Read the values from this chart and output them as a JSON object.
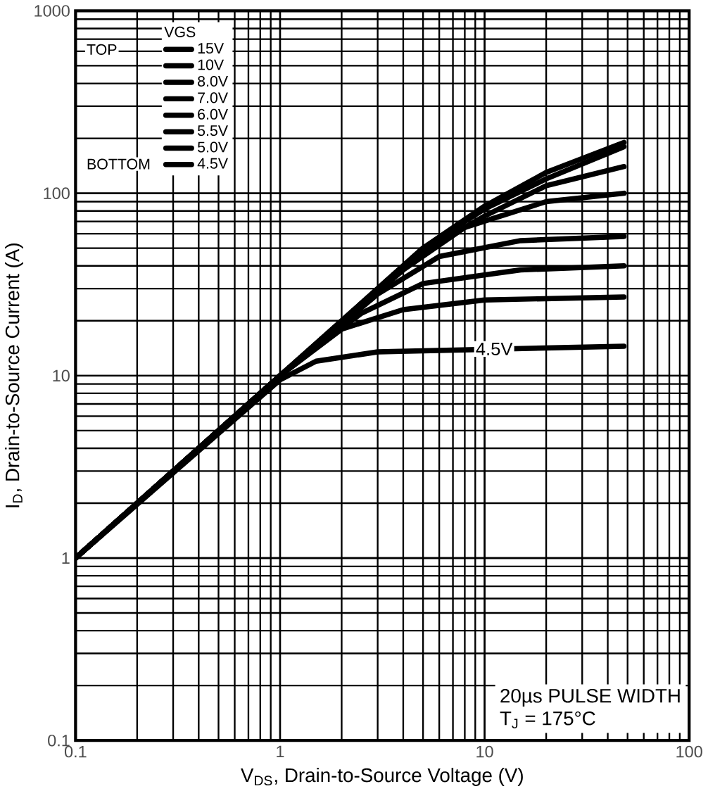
{
  "chart_data": {
    "type": "line",
    "xlabel": "V$_{DS}$, Drain-to-Source Voltage (V)",
    "ylabel": "I$_{D}$, Drain-to-Source Current (A)",
    "legend_title": "VGS",
    "annotations": [
      "TOP",
      "BOTTOM",
      {
        "text": "4.5V",
        "x": 14,
        "y": 14
      },
      "20µs PULSE WIDTH",
      "T$_{J}$ = 175°C"
    ],
    "log": "xy",
    "grid": true,
    "legend": "top left",
    "marker": "none",
    "line_style": "solid",
    "xlim": [
      0.1,
      100
    ],
    "ylim": [
      0.1,
      1000
    ],
    "xticks": [
      0.1,
      1,
      10,
      100
    ],
    "yticks": [
      0.1,
      1,
      10,
      100,
      1000
    ],
    "series": [
      {
        "name": "15V",
        "color": "#000000",
        "x": [
          0.1,
          1,
          5,
          10,
          20,
          48
        ],
        "values": [
          1,
          10,
          50,
          85,
          130,
          190
        ]
      },
      {
        "name": "10V",
        "color": "#000000",
        "x": [
          0.1,
          1,
          5,
          10,
          20,
          48
        ],
        "values": [
          1,
          10,
          50,
          82,
          120,
          180
        ]
      },
      {
        "name": "8.0V",
        "color": "#000000",
        "x": [
          0.1,
          1,
          5,
          10,
          20,
          48
        ],
        "values": [
          1,
          10,
          48,
          75,
          110,
          140
        ]
      },
      {
        "name": "7.0V",
        "color": "#000000",
        "x": [
          0.1,
          1,
          4,
          8,
          20,
          48
        ],
        "values": [
          1,
          10,
          38,
          65,
          90,
          100
        ]
      },
      {
        "name": "6.0V",
        "color": "#000000",
        "x": [
          0.1,
          1,
          3,
          6,
          15,
          48
        ],
        "values": [
          1,
          10,
          28,
          45,
          55,
          58
        ]
      },
      {
        "name": "5.5V",
        "color": "#000000",
        "x": [
          0.1,
          1,
          2.5,
          5,
          15,
          48
        ],
        "values": [
          1,
          10,
          22,
          32,
          38,
          40
        ]
      },
      {
        "name": "5.0V",
        "color": "#000000",
        "x": [
          0.1,
          1,
          2,
          4,
          10,
          48
        ],
        "values": [
          1,
          10,
          18,
          23,
          26,
          27
        ]
      },
      {
        "name": "4.5V",
        "color": "#000000",
        "x": [
          0.1,
          1,
          1.5,
          3,
          48
        ],
        "values": [
          1,
          9.5,
          12,
          13.5,
          14.5
        ]
      }
    ]
  }
}
